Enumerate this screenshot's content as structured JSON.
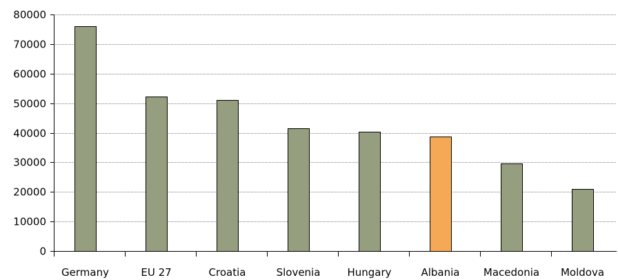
{
  "chart_data": {
    "type": "bar",
    "title": "",
    "xlabel": "",
    "ylabel": "",
    "categories": [
      "Germany",
      "EU 27",
      "Croatia",
      "Slovenia",
      "Hungary",
      "Albania",
      "Macedonia",
      "Moldova"
    ],
    "values": [
      76000,
      52200,
      51100,
      41400,
      40300,
      38700,
      29600,
      20900
    ],
    "highlight_category": "Albania",
    "ylim": [
      0,
      80000
    ],
    "yticks": [
      0,
      10000,
      20000,
      30000,
      40000,
      50000,
      60000,
      70000,
      80000
    ],
    "grid": true,
    "legend": "none",
    "colors": {
      "bar": "#969e80",
      "highlight": "#f5a956",
      "grid": "#7f7f7f"
    }
  }
}
